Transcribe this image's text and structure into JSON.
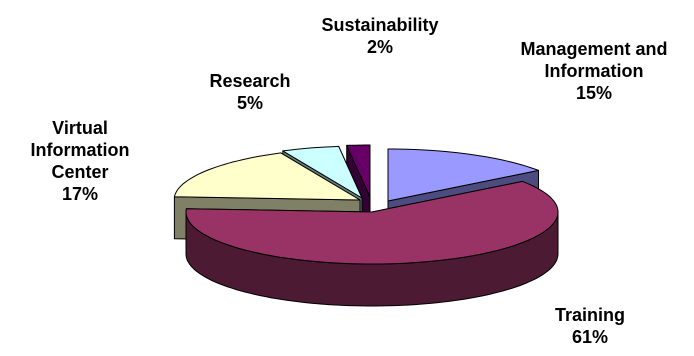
{
  "chart_data": {
    "type": "pie",
    "style": "3d-exploded",
    "legend": "none",
    "slices": [
      {
        "name_lines": [
          "Management and",
          "Information"
        ],
        "percent_label": "15%",
        "value": 15,
        "top_color": "#9999ff",
        "side_color": "#4c4c80"
      },
      {
        "name_lines": [
          "Training"
        ],
        "percent_label": "61%",
        "value": 61,
        "top_color": "#993366",
        "side_color": "#4d1a33"
      },
      {
        "name_lines": [
          "Virtual",
          "Information",
          "Center"
        ],
        "percent_label": "17%",
        "value": 17,
        "top_color": "#ffffcc",
        "side_color": "#808066"
      },
      {
        "name_lines": [
          "Research"
        ],
        "percent_label": "5%",
        "value": 5,
        "top_color": "#ccffff",
        "side_color": "#668080"
      },
      {
        "name_lines": [
          "Sustainability"
        ],
        "percent_label": "2%",
        "value": 2,
        "top_color": "#660066",
        "side_color": "#330033"
      }
    ]
  }
}
